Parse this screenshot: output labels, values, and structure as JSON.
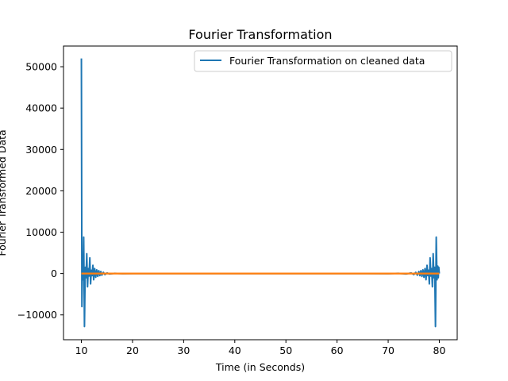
{
  "chart_data": {
    "type": "line",
    "title": "Fourier Transformation",
    "xlabel": "Time (in Seconds)",
    "ylabel": "Fourier Transformed Data",
    "xlim": [
      6.5,
      83.5
    ],
    "ylim": [
      -16000,
      55000
    ],
    "xticks": [
      10,
      20,
      30,
      40,
      50,
      60,
      70,
      80
    ],
    "yticks": [
      -10000,
      0,
      10000,
      20000,
      30000,
      40000,
      50000
    ],
    "xtick_labels": [
      "10",
      "20",
      "30",
      "40",
      "50",
      "60",
      "70",
      "80"
    ],
    "ytick_labels": [
      "−10000",
      "0",
      "10000",
      "20000",
      "30000",
      "40000",
      "50000"
    ],
    "grid": false,
    "legend_position": "top-right",
    "series": [
      {
        "name": "Fourier Transformation on cleaned data",
        "color": "#1f77b4",
        "x": [
          10.0,
          10.1,
          10.2,
          10.3,
          10.45,
          10.6,
          10.75,
          10.9,
          11.05,
          11.2,
          11.35,
          11.5,
          11.65,
          11.8,
          11.95,
          12.1,
          12.25,
          12.4,
          12.6,
          12.8,
          13.0,
          13.2,
          13.4,
          13.6,
          13.8,
          14.0,
          14.3,
          14.6,
          15.0,
          15.5,
          16.5,
          18.0,
          20.0,
          24.0,
          30.0,
          40.0,
          50.0,
          60.0,
          66.0,
          70.0,
          72.0,
          73.5,
          74.5,
          75.0,
          75.4,
          75.7,
          76.0,
          76.2,
          76.4,
          76.6,
          76.8,
          77.0,
          77.2,
          77.4,
          77.6,
          77.75,
          77.9,
          78.05,
          78.2,
          78.35,
          78.5,
          78.65,
          78.8,
          78.95,
          79.1,
          79.25,
          79.4,
          79.55,
          79.7,
          79.8,
          79.9,
          80.0
        ],
        "y": [
          52000,
          -8000,
          1800,
          -1500,
          8800,
          -12800,
          1500,
          -1000,
          4800,
          -3200,
          1200,
          -600,
          3800,
          -2500,
          800,
          -500,
          2000,
          -1500,
          1200,
          -900,
          900,
          -700,
          700,
          -500,
          500,
          -400,
          300,
          -250,
          150,
          -100,
          50,
          -20,
          10,
          0,
          0,
          0,
          0,
          0,
          10,
          -20,
          50,
          -100,
          150,
          -250,
          300,
          -400,
          500,
          -500,
          700,
          -700,
          900,
          -900,
          1200,
          -1500,
          2000,
          -500,
          800,
          -2500,
          3800,
          -600,
          1200,
          -3200,
          4800,
          -1000,
          1500,
          -12800,
          8800,
          -1500,
          1800,
          -1000,
          1500,
          0
        ]
      },
      {
        "name": "",
        "color": "#ff7f0e",
        "x": [
          10,
          12,
          15,
          20,
          30,
          40,
          50,
          60,
          70,
          75,
          78,
          80
        ],
        "y": [
          0,
          0,
          0,
          0,
          0,
          0,
          0,
          0,
          0,
          0,
          0,
          0
        ]
      }
    ]
  }
}
